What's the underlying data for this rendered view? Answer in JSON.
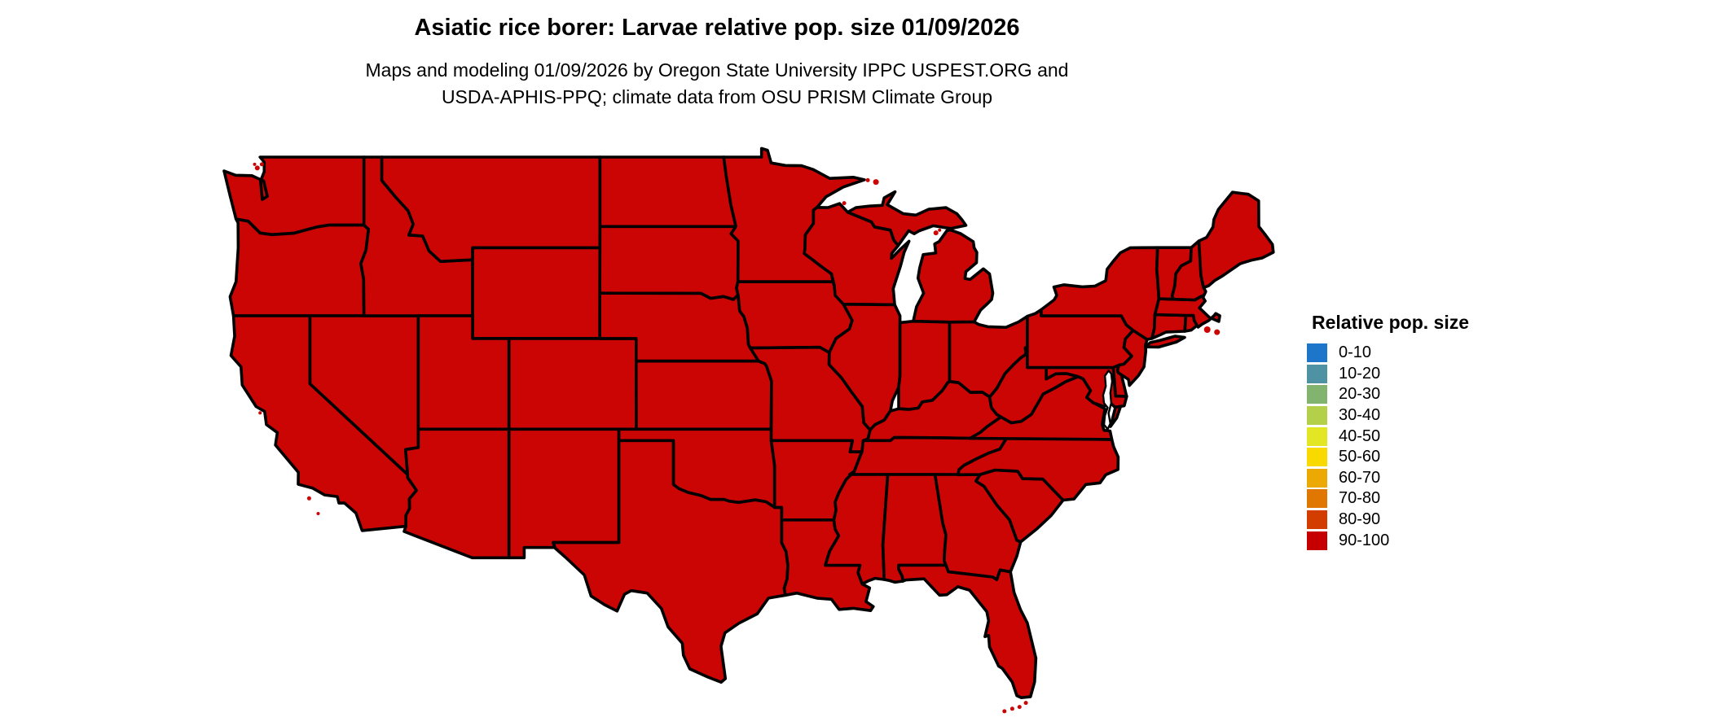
{
  "page": {
    "background_color": "#ffffff"
  },
  "header": {
    "title": "Asiatic rice borer: Larvae relative pop. size 01/09/2026",
    "subtitle_line1": "Maps and modeling 01/09/2026 by Oregon State University IPPC USPEST.ORG and",
    "subtitle_line2": "USDA-APHIS-PPQ; climate data from OSU PRISM Climate Group"
  },
  "map": {
    "region": "contiguous United States",
    "type": "choropleth",
    "observed_value_class_all_states": "90-100",
    "fill_color": "#cb0404",
    "border_color": "#000000",
    "water_color": "#ffffff"
  },
  "legend": {
    "title": "Relative pop. size",
    "items": [
      {
        "label": "0-10",
        "color": "#1d76c9"
      },
      {
        "label": "10-20",
        "color": "#4e92a4"
      },
      {
        "label": "20-30",
        "color": "#82b46f"
      },
      {
        "label": "30-40",
        "color": "#b4cf4a"
      },
      {
        "label": "40-50",
        "color": "#e3e623"
      },
      {
        "label": "50-60",
        "color": "#f8da00"
      },
      {
        "label": "60-70",
        "color": "#eda903"
      },
      {
        "label": "70-80",
        "color": "#e07700"
      },
      {
        "label": "80-90",
        "color": "#d43d00"
      },
      {
        "label": "90-100",
        "color": "#c60000"
      }
    ]
  }
}
